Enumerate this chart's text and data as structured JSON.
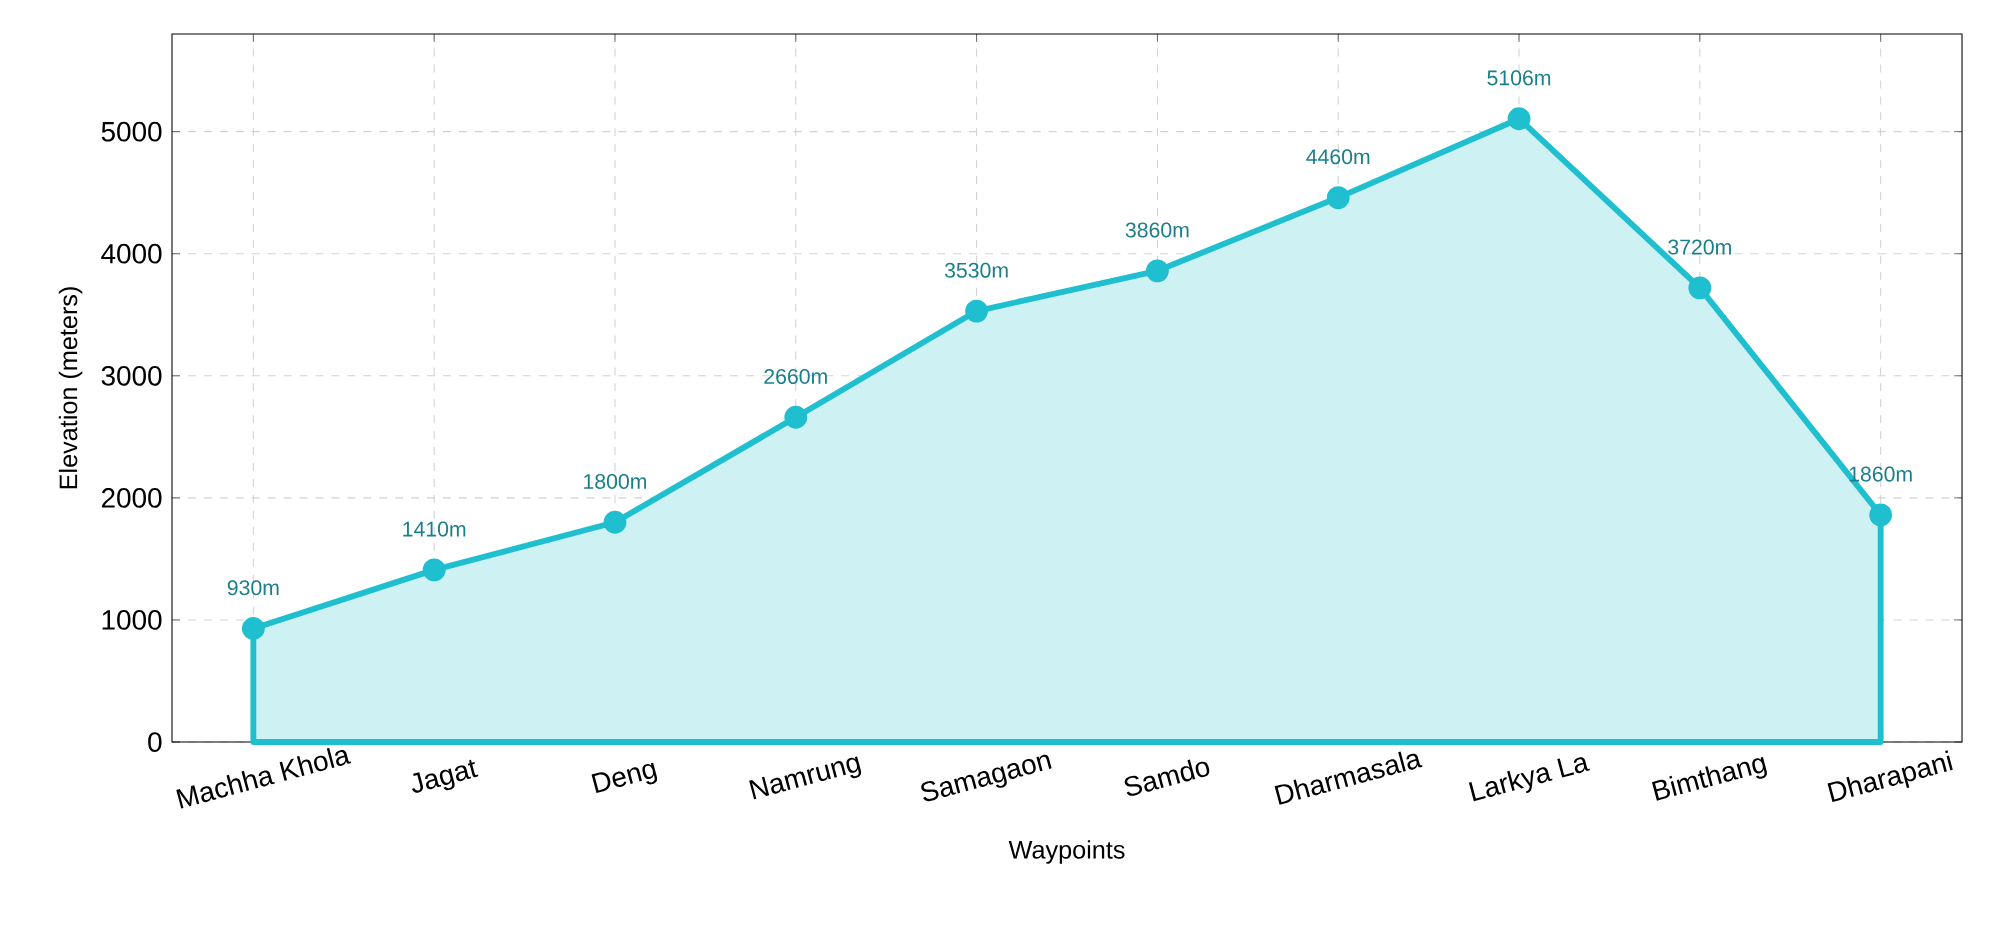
{
  "chart_data": {
    "type": "area",
    "xlabel": "Waypoints",
    "ylabel": "Elevation (meters)",
    "categories": [
      "Machha Khola",
      "Jagat",
      "Deng",
      "Namrung",
      "Samagaon",
      "Samdo",
      "Dharmasala",
      "Larkya La",
      "Bimthang",
      "Dharapani"
    ],
    "values": [
      930,
      1410,
      1800,
      2660,
      3530,
      3860,
      4460,
      5106,
      3720,
      1860
    ],
    "value_labels": [
      "930m",
      "1410m",
      "1800m",
      "2660m",
      "3530m",
      "3860m",
      "4460m",
      "5106m",
      "3720m",
      "1860m"
    ],
    "color": "#1fbfcf",
    "marker": "circle",
    "line_style": "solid",
    "ylim": [
      0,
      5800
    ],
    "yticks": [
      0,
      1000,
      2000,
      3000,
      4000,
      5000
    ],
    "grid": true
  }
}
